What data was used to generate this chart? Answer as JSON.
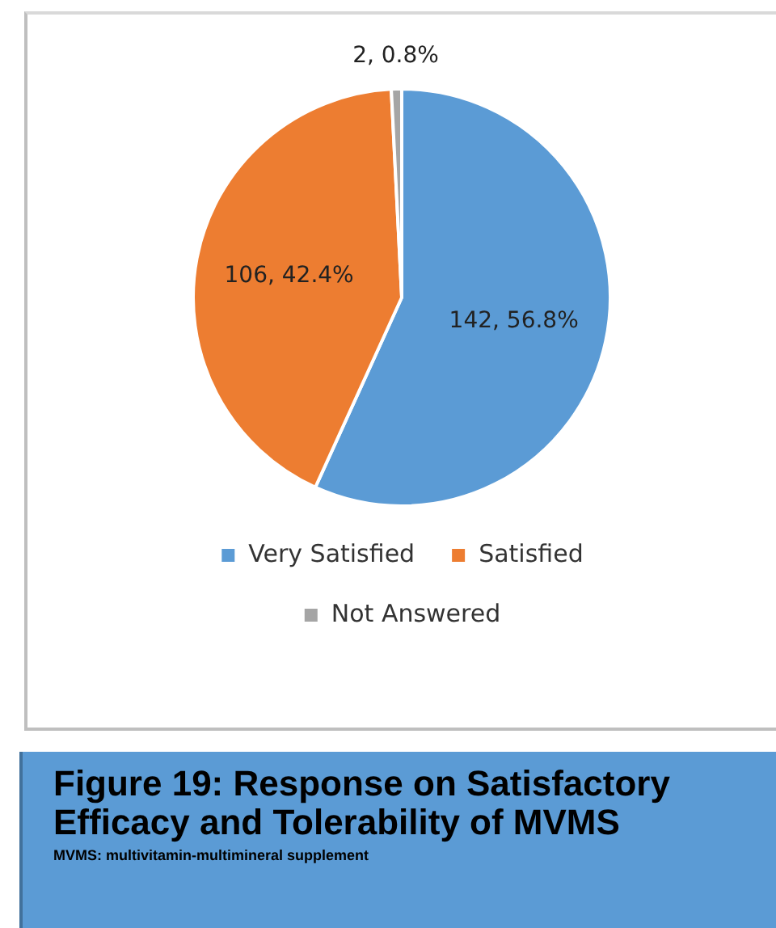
{
  "chart_data": {
    "type": "pie",
    "title": "Figure 19: Response on Satisfactory Efficacy and Tolerability of MVMS",
    "subtitle": "MVMS: multivitamin-multimineral supplement",
    "categories": [
      "Very Satisfied",
      "Satisfied",
      "Not Answered"
    ],
    "values": [
      142,
      106,
      2
    ],
    "colors": [
      "#5b9bd5",
      "#ed7d31",
      "#a5a5a5"
    ],
    "value_labels": [
      "142, 56.8%",
      "106, 42.4%",
      "2, 0.8%"
    ],
    "legend": "bottom"
  }
}
